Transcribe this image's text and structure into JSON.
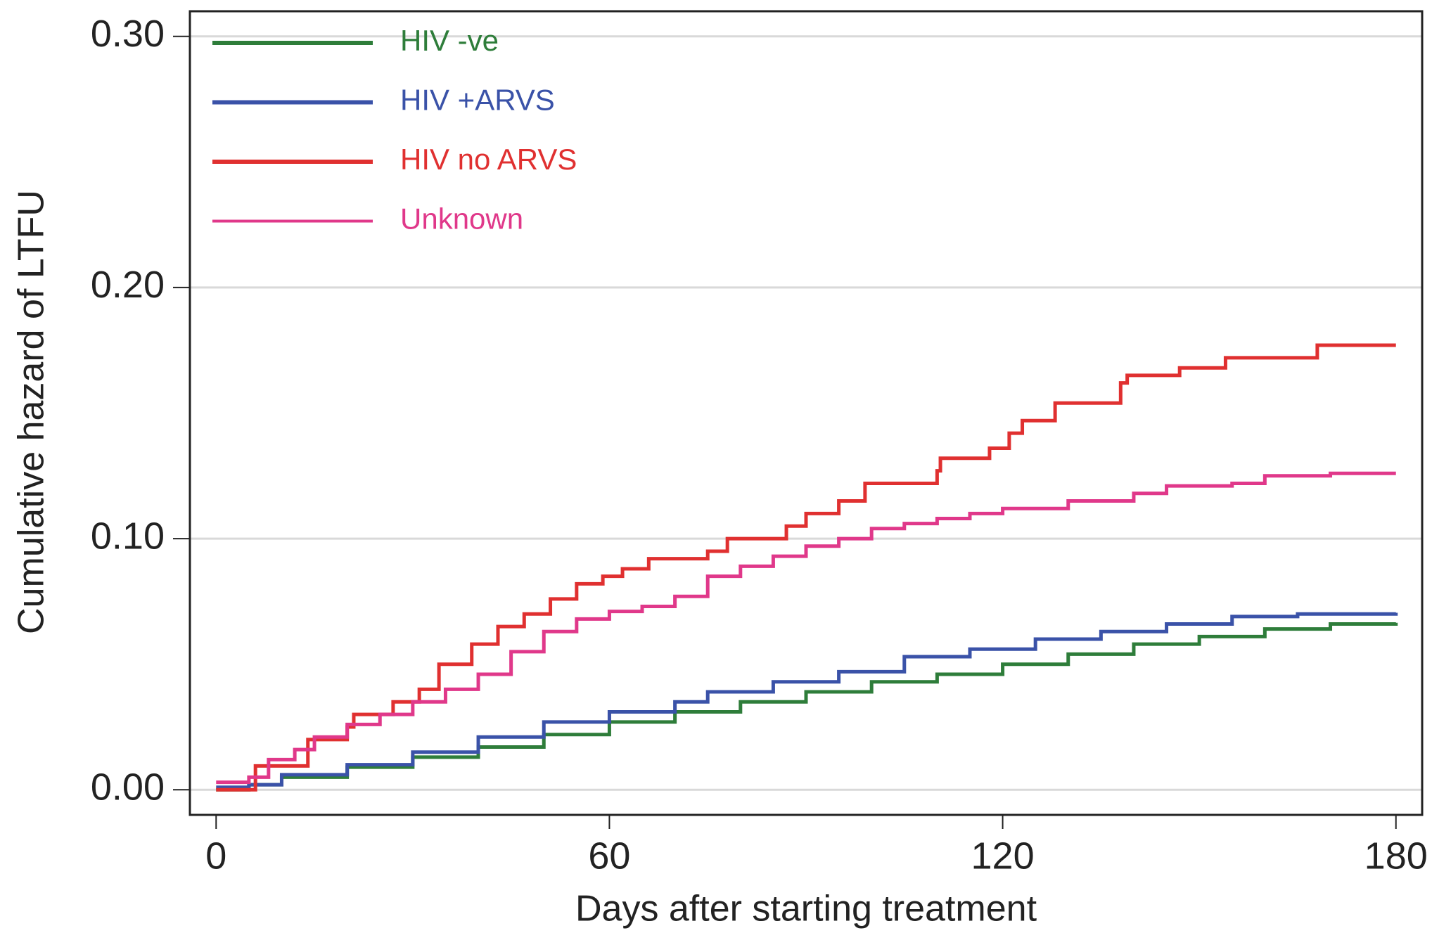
{
  "chart_data": {
    "type": "line",
    "step": true,
    "xlabel": "Days after starting treatment",
    "ylabel": "Cumulative hazard of LTFU",
    "xlim": [
      -4,
      184
    ],
    "ylim": [
      -0.01,
      0.31
    ],
    "xticks": [
      0,
      60,
      120,
      180
    ],
    "yticks": [
      {
        "value": 0,
        "label": "0.00"
      },
      {
        "value": 0.1,
        "label": "0.10"
      },
      {
        "value": 0.2,
        "label": "0.20"
      },
      {
        "value": 0.3,
        "label": "0.30"
      }
    ],
    "grid": true,
    "legend": "upper left",
    "series": [
      {
        "name": "HIV -ve",
        "color": "#2e7d3a",
        "x": [
          0,
          5,
          10,
          20,
          30,
          40,
          50,
          60,
          70,
          80,
          90,
          100,
          110,
          120,
          130,
          140,
          150,
          160,
          170,
          180
        ],
        "values": [
          0,
          0.002,
          0.005,
          0.009,
          0.013,
          0.017,
          0.022,
          0.027,
          0.031,
          0.035,
          0.039,
          0.043,
          0.046,
          0.05,
          0.054,
          0.058,
          0.061,
          0.064,
          0.066,
          0.0665
        ]
      },
      {
        "name": "HIV +ARVS",
        "color": "#3a52a8",
        "x": [
          0,
          5,
          10,
          20,
          30,
          40,
          50,
          60,
          70,
          75,
          85,
          95,
          105,
          115,
          125,
          135,
          145,
          155,
          165,
          180
        ],
        "values": [
          0.001,
          0.002,
          0.006,
          0.01,
          0.015,
          0.021,
          0.027,
          0.031,
          0.035,
          0.039,
          0.043,
          0.047,
          0.053,
          0.056,
          0.06,
          0.063,
          0.066,
          0.069,
          0.07,
          0.0705
        ]
      },
      {
        "name": "HIV no ARVS",
        "color": "#e03030",
        "x": [
          0,
          6,
          14,
          20,
          21,
          27,
          31,
          34,
          39,
          43,
          47,
          51,
          55,
          59,
          62,
          66,
          75,
          78,
          87,
          90,
          95,
          99,
          110,
          110.5,
          118,
          121,
          123,
          128,
          138,
          139,
          147,
          154,
          168,
          180
        ],
        "values": [
          0,
          0.0095,
          0.02,
          0.025,
          0.03,
          0.035,
          0.04,
          0.05,
          0.058,
          0.065,
          0.07,
          0.076,
          0.082,
          0.085,
          0.088,
          0.092,
          0.095,
          0.1,
          0.105,
          0.11,
          0.115,
          0.122,
          0.127,
          0.132,
          0.136,
          0.142,
          0.147,
          0.154,
          0.162,
          0.165,
          0.168,
          0.172,
          0.177,
          0.177
        ]
      },
      {
        "name": "Unknown",
        "color": "#e0388a",
        "x": [
          0,
          5,
          8,
          12,
          15,
          20,
          25,
          30,
          35,
          40,
          45,
          50,
          55,
          60,
          65,
          70,
          75,
          80,
          85,
          90,
          95,
          100,
          105,
          110,
          115,
          120,
          130,
          140,
          145,
          155,
          160,
          170,
          180
        ],
        "values": [
          0.003,
          0.005,
          0.012,
          0.016,
          0.021,
          0.026,
          0.03,
          0.035,
          0.04,
          0.046,
          0.055,
          0.063,
          0.068,
          0.071,
          0.073,
          0.077,
          0.085,
          0.089,
          0.093,
          0.097,
          0.1,
          0.104,
          0.106,
          0.108,
          0.11,
          0.112,
          0.115,
          0.118,
          0.121,
          0.122,
          0.125,
          0.126,
          0.126
        ]
      }
    ]
  }
}
